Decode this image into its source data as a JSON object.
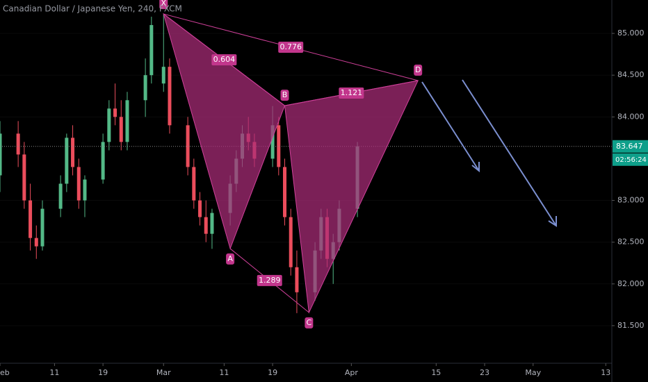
{
  "chart_data": {
    "type": "candlestick",
    "title": "Canadian Dollar / Japanese Yen, 240, FXCM",
    "x": [
      "02-02",
      "02-05",
      "02-06",
      "02-07",
      "02-08",
      "02-09",
      "02-12",
      "02-13",
      "02-14",
      "02-15",
      "02-16",
      "02-19",
      "02-20",
      "02-21",
      "02-22",
      "02-23",
      "02-26",
      "02-27",
      "03-01",
      "03-02",
      "03-05",
      "03-06",
      "03-07",
      "03-08",
      "03-09",
      "03-12",
      "03-13",
      "03-14",
      "03-15",
      "03-16",
      "03-19",
      "03-20",
      "03-21",
      "03-22",
      "03-23",
      "03-26",
      "03-27",
      "03-28",
      "03-29",
      "03-30",
      "04-02"
    ],
    "open": [
      83.3,
      83.8,
      83.55,
      83.0,
      82.55,
      82.45,
      82.9,
      83.2,
      83.75,
      83.4,
      83.0,
      83.25,
      83.7,
      84.1,
      84.0,
      83.7,
      84.2,
      84.5,
      84.4,
      84.6,
      83.9,
      83.4,
      83.0,
      82.8,
      82.6,
      82.85,
      83.2,
      83.5,
      83.8,
      83.7,
      83.5,
      83.9,
      83.4,
      82.8,
      82.2,
      81.9,
      82.4,
      82.8,
      82.3,
      82.5,
      82.9
    ],
    "high": [
      83.95,
      83.95,
      83.7,
      83.2,
      82.7,
      83.0,
      83.3,
      83.8,
      83.9,
      83.5,
      83.3,
      83.8,
      84.2,
      84.4,
      84.2,
      84.3,
      84.7,
      85.2,
      85.23,
      84.7,
      84.0,
      83.5,
      83.1,
      83.0,
      82.9,
      83.3,
      83.6,
      83.9,
      84.0,
      83.8,
      84.13,
      84.0,
      83.5,
      82.9,
      82.4,
      82.5,
      82.9,
      82.9,
      82.6,
      83.0,
      83.7
    ],
    "low": [
      83.1,
      83.4,
      82.9,
      82.4,
      82.3,
      82.4,
      82.8,
      83.1,
      83.3,
      82.9,
      82.8,
      83.2,
      83.6,
      83.9,
      83.6,
      83.6,
      84.0,
      84.4,
      84.3,
      83.8,
      83.3,
      82.9,
      82.7,
      82.5,
      82.42,
      82.7,
      83.1,
      83.4,
      83.6,
      83.4,
      83.4,
      83.3,
      82.7,
      82.1,
      81.65,
      81.8,
      82.3,
      82.2,
      82.0,
      82.4,
      82.8
    ],
    "close": [
      83.8,
      83.55,
      83.0,
      82.55,
      82.45,
      82.9,
      83.2,
      83.75,
      83.4,
      83.0,
      83.25,
      83.7,
      84.1,
      84.0,
      83.7,
      84.2,
      84.5,
      85.1,
      84.6,
      83.9,
      83.4,
      83.0,
      82.8,
      82.6,
      82.85,
      83.2,
      83.5,
      83.8,
      83.7,
      83.5,
      83.9,
      83.4,
      82.8,
      82.2,
      81.9,
      82.4,
      82.8,
      82.3,
      82.5,
      82.9,
      83.647
    ],
    "up_color": "#53b987",
    "down_color": "#eb4d5c",
    "xlim": [
      "02-02",
      "05-14"
    ],
    "xticks": [
      {
        "value": "02-02",
        "label": "eb"
      },
      {
        "value": "02-11",
        "label": "11"
      },
      {
        "value": "02-19",
        "label": "19"
      },
      {
        "value": "03-01",
        "label": "Mar"
      },
      {
        "value": "03-11",
        "label": "11"
      },
      {
        "value": "03-19",
        "label": "19"
      },
      {
        "value": "04-01",
        "label": "Apr"
      },
      {
        "value": "04-15",
        "label": "15"
      },
      {
        "value": "04-23",
        "label": "23"
      },
      {
        "value": "05-01",
        "label": "May"
      },
      {
        "value": "05-13",
        "label": "13"
      }
    ],
    "ylim": [
      81.05,
      85.4
    ],
    "yticks": [
      {
        "value": 85,
        "label": "85.000"
      },
      {
        "value": 84.5,
        "label": "84.500"
      },
      {
        "value": 84,
        "label": "84.000"
      },
      {
        "value": 83,
        "label": "83.000"
      },
      {
        "value": 82.5,
        "label": "82.500"
      },
      {
        "value": 82,
        "label": "82.000"
      },
      {
        "value": 81.5,
        "label": "81.500"
      }
    ],
    "last_price": 83.647,
    "countdown": "02:56:24",
    "pattern": {
      "color": "#d0409a",
      "points": [
        {
          "label": "X",
          "x": "03-01",
          "y": 85.233
        },
        {
          "label": "A",
          "x": "03-12",
          "y": 82.423
        },
        {
          "label": "B",
          "x": "03-21",
          "y": 84.135
        },
        {
          "label": "C",
          "x": "03-25",
          "y": 81.658
        },
        {
          "label": "D",
          "x": "04-12",
          "y": 84.435
        }
      ],
      "ratios": [
        {
          "between": [
            "X",
            "B"
          ],
          "value": 0.604
        },
        {
          "between": [
            "X",
            "D"
          ],
          "value": 0.776
        },
        {
          "between": [
            "B",
            "D"
          ],
          "value": 1.121
        },
        {
          "between": [
            "A",
            "C"
          ],
          "value": 1.289
        }
      ]
    }
  }
}
